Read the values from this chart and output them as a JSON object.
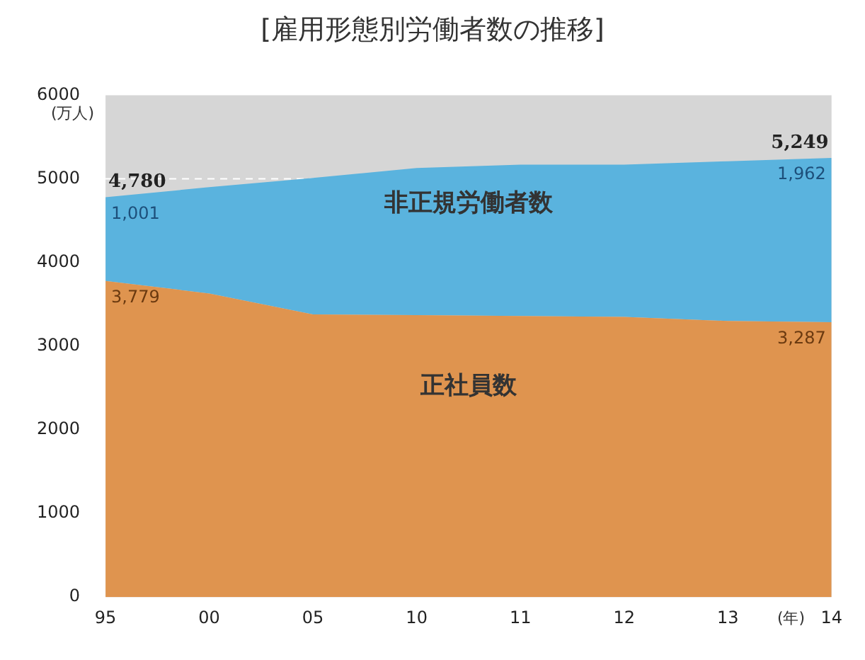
{
  "chart_data": {
    "type": "area",
    "title": "[雇用形態別労働者数の推移]",
    "ylabel": "(万人)",
    "xlabel": "(年)",
    "categories": [
      "95",
      "00",
      "05",
      "10",
      "11",
      "12",
      "13",
      "14"
    ],
    "stacked": true,
    "series": [
      {
        "name": "正社員数",
        "color": "#df944f",
        "values": [
          3779,
          3630,
          3380,
          3370,
          3360,
          3350,
          3300,
          3287
        ],
        "value_labels": [
          "3,779",
          null,
          null,
          null,
          null,
          null,
          null,
          "3,287"
        ]
      },
      {
        "name": "非正規労働者数",
        "color": "#5ab3de",
        "values": [
          1001,
          1270,
          1630,
          1760,
          1810,
          1820,
          1910,
          1962
        ],
        "value_labels": [
          "1,001",
          null,
          null,
          null,
          null,
          null,
          null,
          "1,962"
        ]
      }
    ],
    "totals": [
      "4,780",
      null,
      null,
      null,
      null,
      null,
      null,
      "5,249"
    ],
    "ref_lines": [
      {
        "axis": "y",
        "value": 5000,
        "color": "#ffffff",
        "line_style": "dashed"
      }
    ],
    "ylim": [
      0,
      6000
    ],
    "yticks": [
      0,
      1000,
      2000,
      3000,
      4000,
      5000,
      6000
    ],
    "grid": false,
    "legend": false
  }
}
